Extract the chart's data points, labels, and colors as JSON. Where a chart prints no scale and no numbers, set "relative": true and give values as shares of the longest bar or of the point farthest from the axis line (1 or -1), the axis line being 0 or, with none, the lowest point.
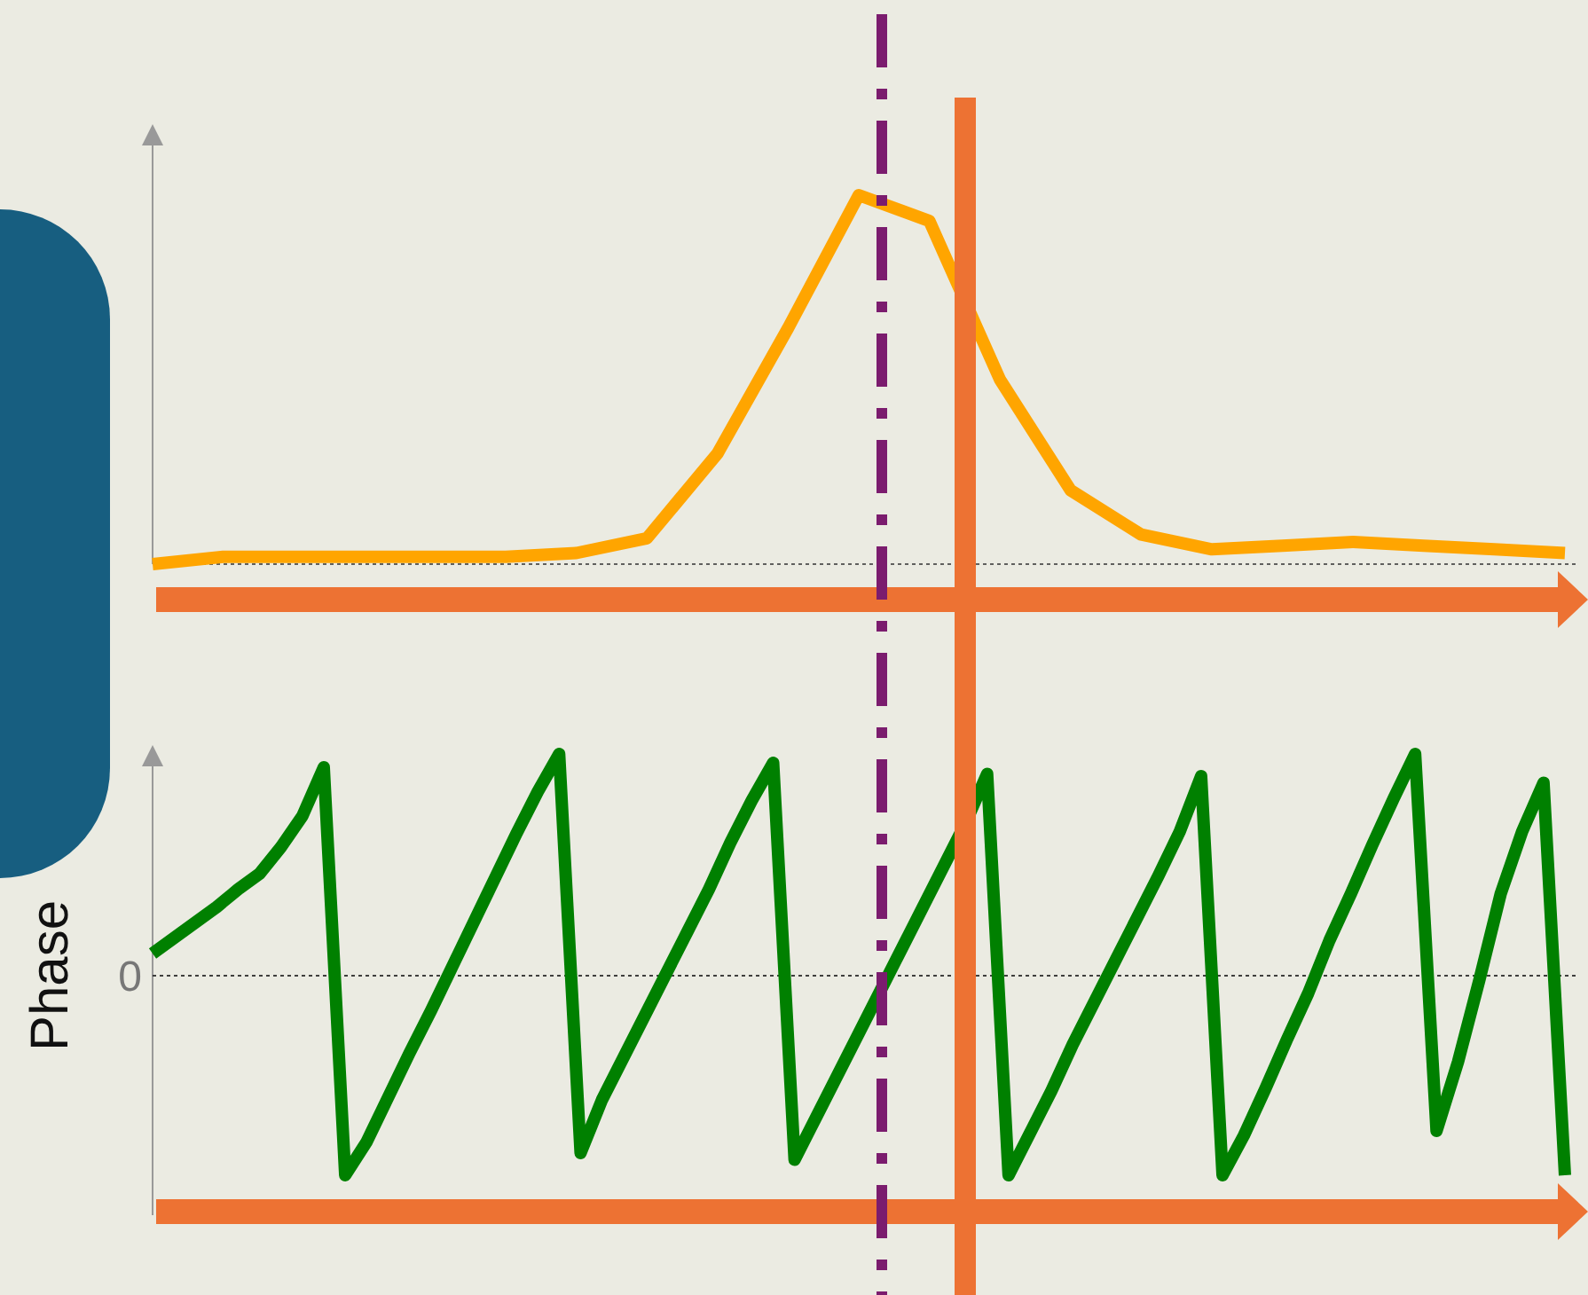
{
  "chart_data": [
    {
      "type": "line",
      "relative": true,
      "categories": [
        null,
        null,
        null,
        null,
        null,
        null,
        null,
        null,
        null,
        null,
        null,
        null,
        null,
        null,
        null,
        null,
        null,
        null,
        null,
        null,
        null
      ],
      "series": [
        {
          "color": "#ffa500",
          "values": [
            0,
            0.02,
            0.02,
            0.02,
            0.02,
            0.02,
            0.03,
            0.07,
            0.3,
            0.64,
            1,
            0.93,
            0.5,
            0.2,
            0.08,
            0.04,
            0.05,
            0.06,
            0.05,
            0.04,
            0.03
          ]
        }
      ]
    },
    {
      "type": "line",
      "relative": true,
      "ylabel": "Phase",
      "categories": [
        null,
        null,
        null,
        null,
        null,
        null,
        null,
        null,
        null,
        null,
        null,
        null,
        null,
        null,
        null,
        null,
        null,
        null,
        null,
        null,
        null,
        null,
        null,
        null,
        null,
        null,
        null,
        null,
        null,
        null,
        null,
        null,
        null,
        null,
        null,
        null,
        null,
        null,
        null,
        null,
        null,
        null,
        null,
        null,
        null,
        null,
        null,
        null,
        null,
        null,
        null,
        null,
        null,
        null,
        null,
        null,
        null,
        null,
        null,
        null,
        null,
        null,
        null,
        null,
        null,
        null,
        null
      ],
      "series": [
        {
          "color": "#008000",
          "values": [
            0.1,
            0.17,
            0.24,
            0.31,
            0.39,
            0.46,
            0.58,
            0.72,
            0.94,
            -0.9,
            -0.75,
            -0.55,
            -0.35,
            -0.16,
            0.04,
            0.24,
            0.44,
            0.64,
            0.83,
            1.0,
            -0.8,
            -0.56,
            -0.37,
            -0.18,
            0.01,
            0.2,
            0.39,
            0.6,
            0.79,
            0.96,
            -0.83,
            -0.64,
            -0.45,
            -0.26,
            -0.07,
            0.12,
            0.31,
            0.5,
            0.69,
            0.91,
            -0.9,
            -0.71,
            -0.52,
            -0.31,
            -0.12,
            0.07,
            0.26,
            0.45,
            0.65,
            0.9,
            -0.9,
            -0.72,
            -0.51,
            -0.29,
            -0.08,
            0.16,
            0.37,
            0.59,
            0.8,
            1.0,
            -0.7,
            -0.39,
            -0.02,
            0.37,
            0.65,
            0.87,
            -0.9
          ]
        }
      ],
      "ref_lines": [
        {
          "axis": "y",
          "value": 0,
          "label": "0"
        }
      ]
    }
  ]
}
